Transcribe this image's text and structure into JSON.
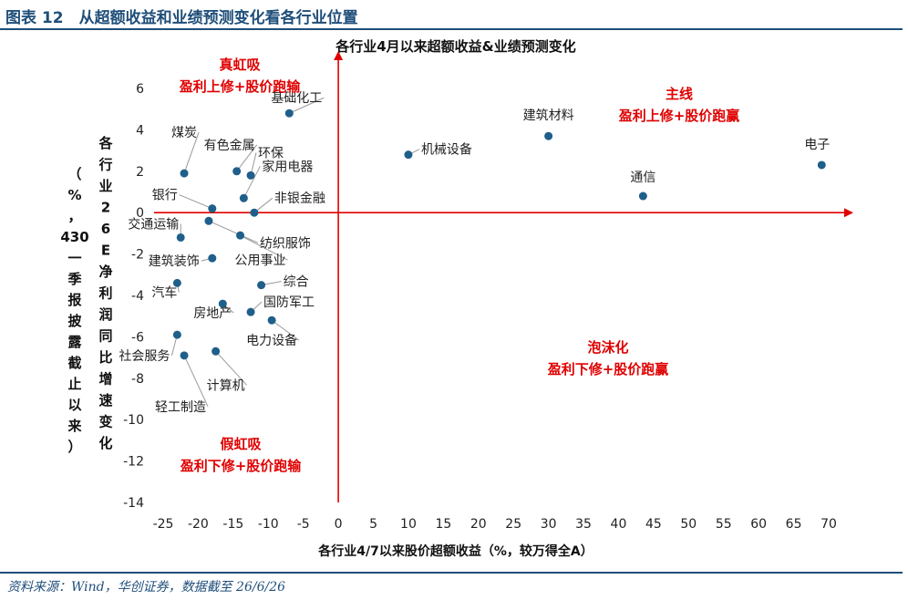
{
  "figure": {
    "title": "图表 12　从超额收益和业绩预测变化看各行业位置",
    "source": "资料来源：Wind，华创证券，数据截至 26/6/26"
  },
  "colors": {
    "point": "#1f5f8b",
    "axis": "#e00000",
    "quadrant_text": "#e00000",
    "header": "#1f4e79"
  },
  "chart_data": {
    "type": "scatter",
    "title": "各行业4月以来超额收益&业绩预测变化",
    "xlabel": "各行业4/7以来股价超额收益（%，较万得全A）",
    "ylabel_main": "各行业26E净利润同比增速变化",
    "ylabel_note": "（%，430一季报披露截止以来）",
    "xlim": [
      -25,
      70
    ],
    "ylim": [
      -14,
      6
    ],
    "xticks": [
      -25,
      -20,
      -15,
      -10,
      -5,
      0,
      5,
      10,
      15,
      20,
      25,
      30,
      35,
      40,
      45,
      50,
      55,
      60,
      65,
      70
    ],
    "yticks": [
      6,
      4,
      2,
      0,
      -2,
      -4,
      -6,
      -8,
      -10,
      -12,
      -14
    ],
    "grid": false,
    "quadrants": [
      {
        "name": "真虹吸",
        "desc": "盈利上修+股价跑输"
      },
      {
        "name": "主线",
        "desc": "盈利上修+股价跑赢"
      },
      {
        "name": "泡沫化",
        "desc": "盈利下修+股价跑赢"
      },
      {
        "name": "假虹吸",
        "desc": "盈利下修+股价跑输"
      }
    ],
    "points": [
      {
        "label": "电子",
        "x": 69,
        "y": 2.3
      },
      {
        "label": "通信",
        "x": 43.5,
        "y": 0.8
      },
      {
        "label": "建筑材料",
        "x": 30,
        "y": 3.7
      },
      {
        "label": "机械设备",
        "x": 10,
        "y": 2.8
      },
      {
        "label": "基础化工",
        "x": -7,
        "y": 4.8
      },
      {
        "label": "煤炭",
        "x": -22,
        "y": 1.9
      },
      {
        "label": "有色金属",
        "x": -14.5,
        "y": 2.0
      },
      {
        "label": "环保",
        "x": -12.5,
        "y": 1.8
      },
      {
        "label": "家用电器",
        "x": -13.5,
        "y": 0.7
      },
      {
        "label": "非银金融",
        "x": -12,
        "y": 0.0
      },
      {
        "label": "银行",
        "x": -18,
        "y": 0.2
      },
      {
        "label": "交通运输",
        "x": -22.5,
        "y": -1.2
      },
      {
        "label": "纺织服饰",
        "x": -18.5,
        "y": -0.4
      },
      {
        "label": "公用事业",
        "x": -14,
        "y": -1.1
      },
      {
        "label": "建筑装饰",
        "x": -18,
        "y": -2.2
      },
      {
        "label": "汽车",
        "x": -23,
        "y": -3.4
      },
      {
        "label": "综合",
        "x": -11,
        "y": -3.5
      },
      {
        "label": "房地产",
        "x": -16.5,
        "y": -4.4
      },
      {
        "label": "国防军工",
        "x": -12.5,
        "y": -4.8
      },
      {
        "label": "电力设备",
        "x": -9.5,
        "y": -5.2
      },
      {
        "label": "社会服务",
        "x": -23,
        "y": -5.9
      },
      {
        "label": "计算机",
        "x": -17.5,
        "y": -6.7
      },
      {
        "label": "轻工制造",
        "x": -22,
        "y": -6.9
      }
    ]
  }
}
